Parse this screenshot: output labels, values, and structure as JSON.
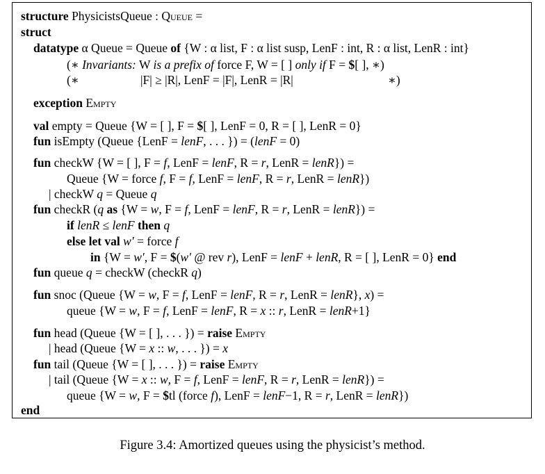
{
  "code": {
    "l1": {
      "kw": "structure",
      "rest": " PhysicistsQueue : ",
      "sig": "Queue",
      "eq": " ="
    },
    "l2": {
      "kw": "struct"
    },
    "l3": {
      "kw": "datatype",
      "a": " α Queue = Queue ",
      "of": "of",
      "b": " {W : α list, F : α list susp, LenF : int, R : α list, LenR : int}"
    },
    "l4": {
      "a": "(∗ ",
      "b": "Invariants:",
      "c": " W ",
      "d": "is a prefix of",
      "e": " force F, W = [ ] ",
      "f": "only if",
      "g": " F = ",
      "h": "$",
      "i": "[ ], ∗)"
    },
    "l5": {
      "a": "(∗",
      "b": "|F| ≥ |R|, LenF = |F|, LenR = |R|",
      "c": "∗)"
    },
    "l6": {
      "kw": "exception",
      "a": " ",
      "b": "Empty"
    },
    "l7": {
      "kw": "val",
      "a": " empty = Queue {W = [ ], F = ",
      "b": "$",
      "c": "[ ], LenF = 0, R = [ ], LenR = 0}"
    },
    "l8": {
      "kw": "fun",
      "a": " isEmpty (Queue {LenF = ",
      "b": "lenF",
      "c": ", . . . }) = (",
      "d": "lenF",
      "e": " = 0)"
    },
    "l9": {
      "kw": "fun",
      "a": " checkW {W = [ ], F = ",
      "b": "f",
      "c": ", LenF = ",
      "d": "lenF",
      "e": ", R = ",
      "f": "r",
      "g": ", LenR = ",
      "h": "lenR",
      "j": "}) ="
    },
    "l10": {
      "a": "Queue {W = force ",
      "b": "f",
      "c": ", F = ",
      "d": "f",
      "e": ", LenF = ",
      "f": "lenF",
      "g": ", R = ",
      "h": "r",
      "j": ", LenR = ",
      "k": "lenR",
      "m": "})"
    },
    "l11": {
      "a": "| checkW ",
      "b": "q",
      "c": " = Queue ",
      "d": "q"
    },
    "l12": {
      "kw": "fun",
      "a": " checkR (",
      "b": "q",
      "c": " ",
      "as": "as",
      "d": " {W = ",
      "e": "w",
      "f": ", F = ",
      "g": "f",
      "h": ", LenF = ",
      "j": "lenF",
      "k": ", R = ",
      "m": "r",
      "n": ", LenR = ",
      "o": "lenR",
      "p": "}) ="
    },
    "l13": {
      "kw": "if",
      "a": " ",
      "b": "lenR",
      "c": " ≤ ",
      "d": "lenF",
      "e": " ",
      "then": "then",
      "f": " ",
      "g": "q"
    },
    "l14": {
      "kw": "else let val",
      "a": " ",
      "b": "w′",
      "c": " = force ",
      "d": "f"
    },
    "l15": {
      "kw": "in",
      "a": " {W = ",
      "b": "w′",
      "c": ", F = ",
      "d": "$",
      "e": "(",
      "f": "w′",
      "g": " @ rev ",
      "h": "r",
      "j": "), LenF = ",
      "k": "lenF",
      "m": " + ",
      "n": "lenR",
      "o": ", R = [ ], LenR = 0} ",
      "end": "end"
    },
    "l16": {
      "kw": "fun",
      "a": " queue ",
      "b": "q",
      "c": " = checkW (checkR ",
      "d": "q",
      "e": ")"
    },
    "l17": {
      "kw": "fun",
      "a": " snoc (Queue {W = ",
      "b": "w",
      "c": ", F = ",
      "d": "f",
      "e": ", LenF = ",
      "f": "lenF",
      "g": ", R = ",
      "h": "r",
      "j": ", LenR = ",
      "k": "lenR",
      "m": "}, ",
      "n": "x",
      "o": ") ="
    },
    "l18": {
      "a": "queue {W = ",
      "b": "w",
      "c": ", F = ",
      "d": "f",
      "e": ", LenF = ",
      "f": "lenF",
      "g": ", R = ",
      "h": "x",
      "j": " :: ",
      "k": "r",
      "m": ", LenR = ",
      "n": "lenR",
      "o": "+1}"
    },
    "l19": {
      "kw": "fun",
      "a": " head (Queue {W = [ ], . . . }) = ",
      "raise": "raise",
      "b": " ",
      "c": "Empty"
    },
    "l20": {
      "a": "| head (Queue {W = ",
      "b": "x",
      "c": " :: ",
      "d": "w",
      "e": ", . . . }) = ",
      "f": "x"
    },
    "l21": {
      "kw": "fun",
      "a": " tail (Queue {W = [ ], . . . }) = ",
      "raise": "raise",
      "b": " ",
      "c": "Empty"
    },
    "l22": {
      "a": "| tail (Queue {W = ",
      "b": "x",
      "c": " :: ",
      "d": "w",
      "e": ", F = ",
      "f": "f",
      "g": ", LenF = ",
      "h": "lenF",
      "j": ", R = ",
      "k": "r",
      "m": ", LenR = ",
      "n": "lenR",
      "o": "}) ="
    },
    "l23": {
      "a": "queue {W = ",
      "b": "w",
      "c": ", F = ",
      "d": "$",
      "e": "tl (force ",
      "f": "f",
      "g": "), LenF = ",
      "h": "lenF",
      "j": "−1, R = ",
      "k": "r",
      "m": ", LenR = ",
      "n": "lenR",
      "o": "})"
    },
    "l24": {
      "kw": "end"
    }
  },
  "caption": "Figure 3.4: Amortized queues using the physicist’s method."
}
